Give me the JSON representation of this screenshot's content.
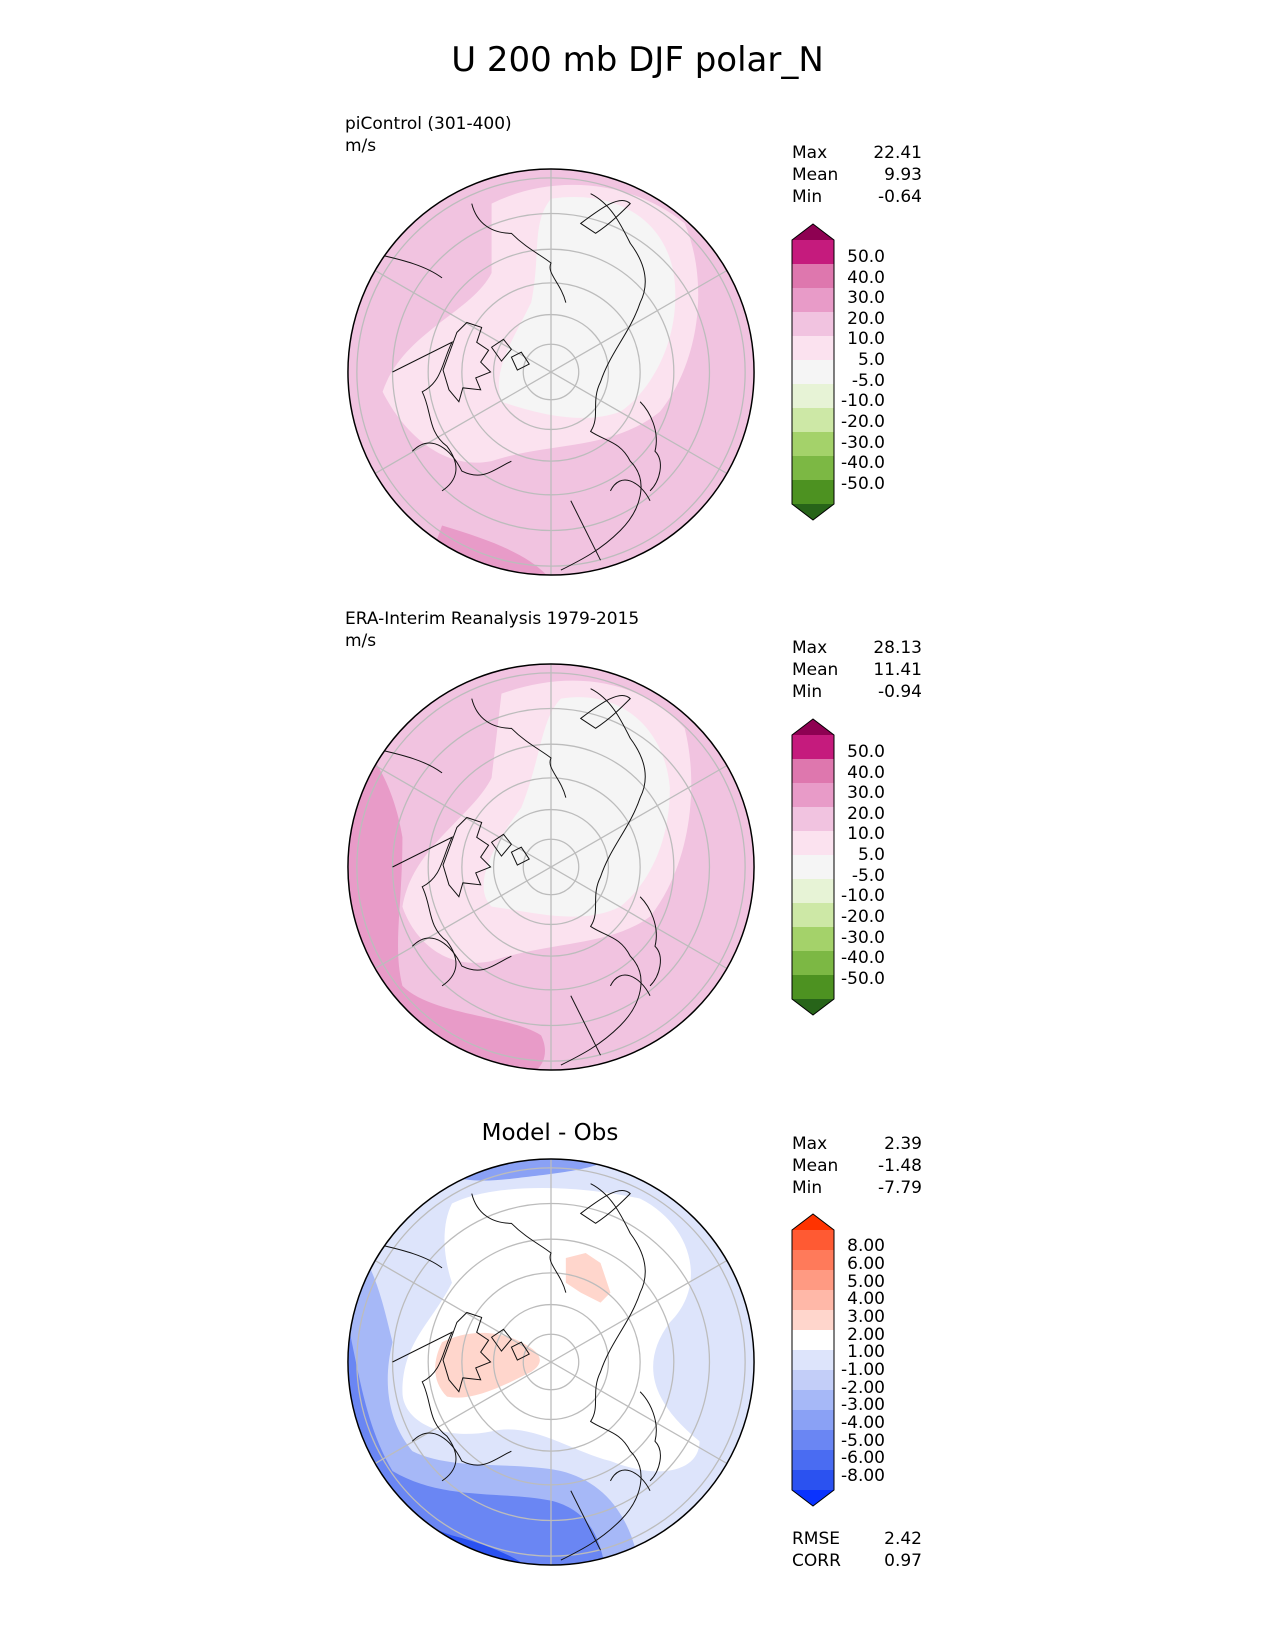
{
  "title": "U 200 mb DJF polar_N",
  "panels": [
    {
      "label_line1": "piControl (301-400)",
      "label_line2": "m/s",
      "stats": {
        "max_label": "Max",
        "max": "22.41",
        "mean_label": "Mean",
        "mean": "9.93",
        "min_label": "Min",
        "min": "-0.64"
      }
    },
    {
      "label_line1": "ERA-Interim Reanalysis 1979-2015",
      "label_line2": "m/s",
      "stats": {
        "max_label": "Max",
        "max": "28.13",
        "mean_label": "Mean",
        "mean": "11.41",
        "min_label": "Min",
        "min": "-0.94"
      }
    },
    {
      "title": "Model - Obs",
      "stats": {
        "max_label": "Max",
        "max": "2.39",
        "mean_label": "Mean",
        "mean": "-1.48",
        "min_label": "Min",
        "min": "-7.79"
      },
      "metrics": {
        "rmse_label": "RMSE",
        "rmse": "2.42",
        "corr_label": "CORR",
        "corr": "0.97"
      }
    }
  ],
  "colorbar_fields": {
    "labels": [
      "50.0",
      "40.0",
      "30.0",
      "20.0",
      "10.0",
      "5.0",
      "-5.0",
      "-10.0",
      "-20.0",
      "-30.0",
      "-40.0",
      "-50.0"
    ],
    "colors": [
      "#8e0152",
      "#c51b7d",
      "#de77ae",
      "#e89bc8",
      "#f1c3e0",
      "#fbe2ef",
      "#f5f5f5",
      "#e7f3d6",
      "#cde8a6",
      "#a4d26a",
      "#7cb844",
      "#4d9221",
      "#276419"
    ]
  },
  "colorbar_diff": {
    "labels": [
      "8.00",
      "6.00",
      "5.00",
      "4.00",
      "3.00",
      "2.00",
      "1.00",
      "-1.00",
      "-2.00",
      "-3.00",
      "-4.00",
      "-5.00",
      "-6.00",
      "-8.00"
    ],
    "colors": [
      "#ff3300",
      "#ff5a33",
      "#ff7a5a",
      "#ff9a82",
      "#ffb8a8",
      "#ffd6cc",
      "#ffffff",
      "#dde4fb",
      "#c3cef8",
      "#a6b8f7",
      "#8aa1f5",
      "#6a86f3",
      "#4a6cf2",
      "#2b52f0",
      "#0a33ff"
    ]
  },
  "map_colors": {
    "coast": "#111111",
    "grid": "#bcbcbc"
  }
}
